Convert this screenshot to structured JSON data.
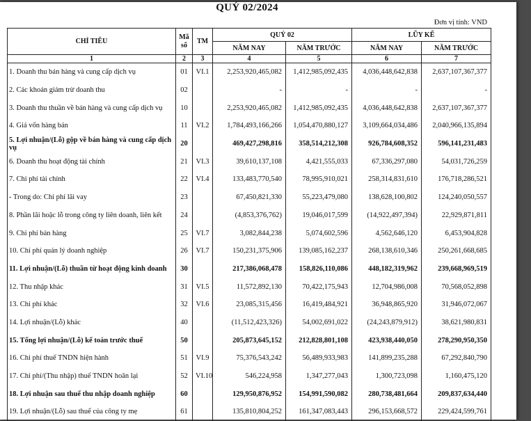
{
  "title": "QUÝ 02/2024",
  "unit": "Đơn vị tính: VND",
  "header": {
    "chi_tieu": "CHỈ TIÊU",
    "ma_so": "Mã số",
    "tm": "TM",
    "quy": "QUÝ 02",
    "luy_ke": "LŨY KẾ",
    "nam_nay": "NĂM NAY",
    "nam_truoc": "NĂM TRƯỚC",
    "col_numbers": [
      "1",
      "2",
      "3",
      "4",
      "5",
      "6",
      "7"
    ]
  },
  "rows": [
    {
      "label": "1. Doanh thu bán hàng và cung cấp dịch vụ",
      "code": "01",
      "tm": "VI.1",
      "q_nn": "2,253,920,465,082",
      "q_nt": "1,412,985,092,435",
      "lk_nn": "4,036,448,642,838",
      "lk_nt": "2,637,107,367,377",
      "bold": false
    },
    {
      "label": "2. Các khoản giảm trừ doanh thu",
      "code": "02",
      "tm": "",
      "q_nn": "-",
      "q_nt": "-",
      "lk_nn": "-",
      "lk_nt": "-",
      "bold": false
    },
    {
      "label": "3. Doanh thu thuần về bán hàng và cung cấp dịch vụ",
      "code": "10",
      "tm": "",
      "q_nn": "2,253,920,465,082",
      "q_nt": "1,412,985,092,435",
      "lk_nn": "4,036,448,642,838",
      "lk_nt": "2,637,107,367,377",
      "bold": false
    },
    {
      "label": "4. Giá vốn hàng bán",
      "code": "11",
      "tm": "VI.2",
      "q_nn": "1,784,493,166,266",
      "q_nt": "1,054,470,880,127",
      "lk_nn": "3,109,664,034,486",
      "lk_nt": "2,040,966,135,894",
      "bold": false
    },
    {
      "label": "5. Lợi nhuận/(Lỗ) gộp về bán hàng và cung cấp dịch vụ",
      "code": "20",
      "tm": "",
      "q_nn": "469,427,298,816",
      "q_nt": "358,514,212,308",
      "lk_nn": "926,784,608,352",
      "lk_nt": "596,141,231,483",
      "bold": true
    },
    {
      "label": "6. Doanh thu hoạt động tài chính",
      "code": "21",
      "tm": "VI.3",
      "q_nn": "39,610,137,108",
      "q_nt": "4,421,555,033",
      "lk_nn": "67,336,297,080",
      "lk_nt": "54,031,726,259",
      "bold": false
    },
    {
      "label": "7. Chi phí tài chính",
      "code": "22",
      "tm": "VI.4",
      "q_nn": "133,483,770,540",
      "q_nt": "78,995,910,021",
      "lk_nn": "258,314,831,610",
      "lk_nt": "176,718,286,521",
      "bold": false
    },
    {
      "label": " - Trong do: Chi phí lãi vay",
      "code": "23",
      "tm": "",
      "q_nn": "67,450,821,330",
      "q_nt": "55,223,479,080",
      "lk_nn": "138,628,100,802",
      "lk_nt": "124,240,050,557",
      "bold": false
    },
    {
      "label": "8. Phần lãi hoặc lỗ trong công ty liên doanh, liên kết",
      "code": "24",
      "tm": "",
      "q_nn": "(4,853,376,762)",
      "q_nt": "19,046,017,599",
      "lk_nn": "(14,922,497,394)",
      "lk_nt": "22,929,871,811",
      "bold": false
    },
    {
      "label": "9. Chi phí bán hàng",
      "code": "25",
      "tm": "VI.7",
      "q_nn": "3,082,844,238",
      "q_nt": "5,074,602,596",
      "lk_nn": "4,562,646,120",
      "lk_nt": "6,453,904,828",
      "bold": false
    },
    {
      "label": "10. Chi phí quản lý doanh nghiệp",
      "code": "26",
      "tm": "VI.7",
      "q_nn": "150,231,375,906",
      "q_nt": "139,085,162,237",
      "lk_nn": "268,138,610,346",
      "lk_nt": "250,261,668,685",
      "bold": false
    },
    {
      "label": "11. Lợi nhuận/(Lỗ) thuần từ hoạt động kinh doanh",
      "code": "30",
      "tm": "",
      "q_nn": "217,386,068,478",
      "q_nt": "158,826,110,086",
      "lk_nn": "448,182,319,962",
      "lk_nt": "239,668,969,519",
      "bold": true
    },
    {
      "label": "12. Thu nhập khác",
      "code": "31",
      "tm": "VI.5",
      "q_nn": "11,572,892,130",
      "q_nt": "70,422,175,943",
      "lk_nn": "12,704,986,008",
      "lk_nt": "70,568,052,898",
      "bold": false
    },
    {
      "label": "13. Chi phí khác",
      "code": "32",
      "tm": "VI.6",
      "q_nn": "23,085,315,456",
      "q_nt": "16,419,484,921",
      "lk_nn": "36,948,865,920",
      "lk_nt": "31,946,072,067",
      "bold": false
    },
    {
      "label": "14. Lợi nhuận/(Lỗ) khác",
      "code": "40",
      "tm": "",
      "q_nn": "(11,512,423,326)",
      "q_nt": "54,002,691,022",
      "lk_nn": "(24,243,879,912)",
      "lk_nt": "38,621,980,831",
      "bold": false
    },
    {
      "label": "15. Tổng lợi nhuận/(Lỗ) kế toán trước thuế",
      "code": "50",
      "tm": "",
      "q_nn": "205,873,645,152",
      "q_nt": "212,828,801,108",
      "lk_nn": "423,938,440,050",
      "lk_nt": "278,290,950,350",
      "bold": true
    },
    {
      "label": "16. Chi phí thuế TNDN hiện hành",
      "code": "51",
      "tm": "VI.9",
      "q_nn": "75,376,543,242",
      "q_nt": "56,489,933,983",
      "lk_nn": "141,899,235,288",
      "lk_nt": "67,292,840,790",
      "bold": false
    },
    {
      "label": "17. Chi phí/(Thu nhập) thuế TNDN hoãn lại",
      "code": "52",
      "tm": "VI.10",
      "q_nn": "546,224,958",
      "q_nt": "1,347,277,043",
      "lk_nn": "1,300,723,098",
      "lk_nt": "1,160,475,120",
      "bold": false
    },
    {
      "label": "18. Lợi nhuận sau thuế thu nhập doanh nghiệp",
      "code": "60",
      "tm": "",
      "q_nn": "129,950,876,952",
      "q_nt": "154,991,590,082",
      "lk_nn": "280,738,481,664",
      "lk_nt": "209,837,634,440",
      "bold": true
    },
    {
      "label": "19. Lợi nhuận/(Lỗ) sau thuế của công ty mẹ",
      "code": "61",
      "tm": "",
      "q_nn": "135,810,804,252",
      "q_nt": "161,347,083,443",
      "lk_nn": "296,153,668,572",
      "lk_nt": "229,424,599,761",
      "bold": false
    }
  ]
}
